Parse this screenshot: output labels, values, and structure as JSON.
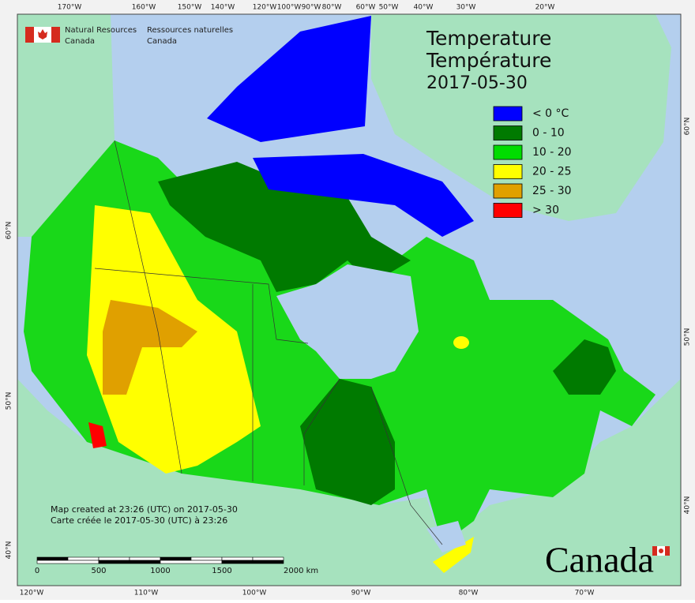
{
  "header": {
    "agency_en": [
      "Natural Resources",
      "Canada"
    ],
    "agency_fr": [
      "Ressources naturelles",
      "Canada"
    ]
  },
  "title": [
    "Temperature",
    "Température",
    "2017-05-30"
  ],
  "legend": [
    {
      "label": "< 0 °C",
      "color": "#0000ff"
    },
    {
      "label": "0 - 10",
      "color": "#007a00"
    },
    {
      "label": "10 - 20",
      "color": "#00dc00"
    },
    {
      "label": "20 - 25",
      "color": "#ffff00"
    },
    {
      "label": "25 - 30",
      "color": "#e0a000"
    },
    {
      "label": "> 30",
      "color": "#ff0000"
    }
  ],
  "graticule": {
    "top": [
      "170°W",
      "160°W",
      "150°W",
      "140°W",
      "120°W",
      "100°W",
      "90°W",
      "80°W",
      "60°W",
      "50°W",
      "40°W",
      "30°W",
      "20°W"
    ],
    "bottom": [
      "120°W",
      "110°W",
      "100°W",
      "90°W",
      "80°W",
      "70°W"
    ],
    "left": [
      "60°N",
      "50°N",
      "40°N"
    ],
    "right": [
      "60°N",
      "50°N",
      "40°N"
    ]
  },
  "notes": [
    "Map created at 23:26 (UTC) on 2017-05-30",
    "Carte créée le 2017-05-30 (UTC) à 23:26"
  ],
  "scale_bar": [
    "0",
    "500",
    "1000",
    "1500",
    "2000 km"
  ],
  "wordmark": "Canada"
}
